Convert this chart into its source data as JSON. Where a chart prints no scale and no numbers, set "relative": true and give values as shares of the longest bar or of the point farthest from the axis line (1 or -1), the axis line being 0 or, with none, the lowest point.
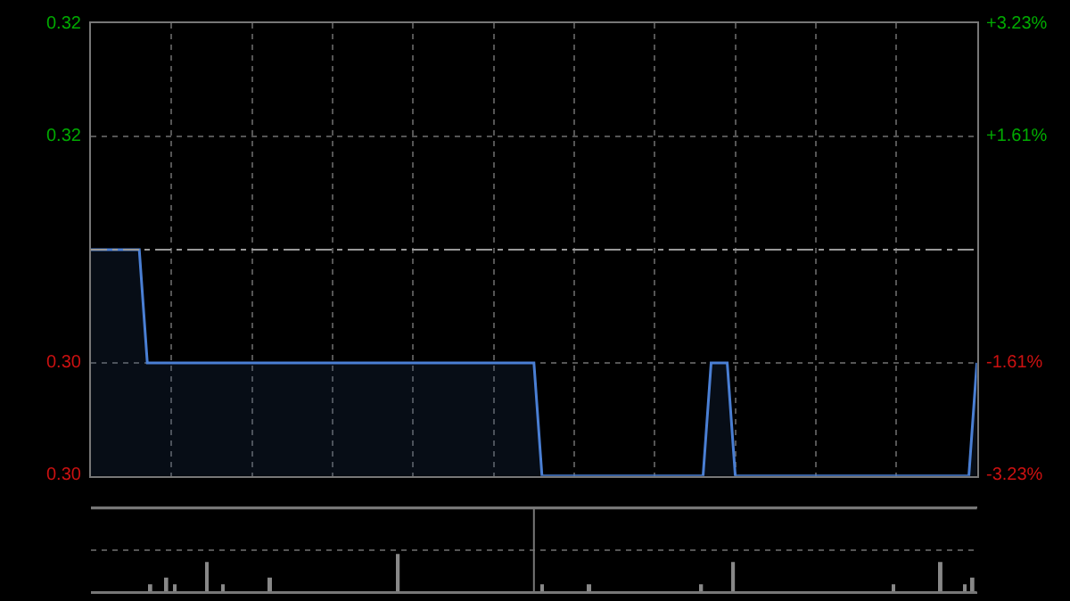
{
  "chart_data": [
    {
      "type": "area",
      "categories": [
        null,
        null,
        null,
        null,
        null,
        null,
        null,
        null,
        null,
        null,
        null,
        null,
        null,
        null,
        null,
        null,
        null,
        null,
        null,
        null,
        null,
        null,
        null,
        null,
        null,
        null,
        null,
        null,
        null,
        null,
        null,
        null,
        null,
        null,
        null,
        null,
        null,
        null,
        null,
        null,
        null,
        null,
        null,
        null,
        null,
        null,
        null,
        null,
        null,
        null,
        null,
        null,
        null,
        null,
        null,
        null,
        null,
        null,
        null,
        null,
        null,
        null,
        null,
        null,
        null,
        null,
        null,
        null,
        null,
        null,
        null,
        null,
        null,
        null,
        null,
        null,
        null,
        null,
        null,
        null,
        null,
        null,
        null,
        null,
        null,
        null,
        null,
        null,
        null,
        null,
        null,
        null,
        null,
        null,
        null,
        null,
        null,
        null,
        null,
        null,
        null,
        null,
        null,
        null,
        null,
        null,
        null,
        null,
        null,
        null,
        null
      ],
      "series": [
        {
          "color": "#4a7fd4",
          "values": [
            0.31,
            0.31,
            0.31,
            0.31,
            0.31,
            0.31,
            0.31,
            0.305,
            0.305,
            0.305,
            0.305,
            0.305,
            0.305,
            0.305,
            0.305,
            0.305,
            0.305,
            0.305,
            0.305,
            0.305,
            0.305,
            0.305,
            0.305,
            0.305,
            0.305,
            0.305,
            0.305,
            0.305,
            0.305,
            0.305,
            0.305,
            0.305,
            0.305,
            0.305,
            0.305,
            0.305,
            0.305,
            0.305,
            0.305,
            0.305,
            0.305,
            0.305,
            0.305,
            0.305,
            0.305,
            0.305,
            0.305,
            0.305,
            0.305,
            0.305,
            0.305,
            0.305,
            0.305,
            0.305,
            0.305,
            0.305,
            0.3,
            0.3,
            0.3,
            0.3,
            0.3,
            0.3,
            0.3,
            0.3,
            0.3,
            0.3,
            0.3,
            0.3,
            0.3,
            0.3,
            0.3,
            0.3,
            0.3,
            0.3,
            0.3,
            0.3,
            0.3,
            0.305,
            0.305,
            0.305,
            0.3,
            0.3,
            0.3,
            0.3,
            0.3,
            0.3,
            0.3,
            0.3,
            0.3,
            0.3,
            0.3,
            0.3,
            0.3,
            0.3,
            0.3,
            0.3,
            0.3,
            0.3,
            0.3,
            0.3,
            0.3,
            0.3,
            0.3,
            0.3,
            0.3,
            0.3,
            0.3,
            0.3,
            0.3,
            0.3,
            0.305
          ]
        }
      ],
      "ylim": [
        0.3,
        0.32
      ],
      "yticks": [
        {
          "value": 0.3,
          "label": "0.30"
        },
        {
          "value": 0.305,
          "label": "0.30"
        },
        {
          "value": 0.315,
          "label": "0.32"
        },
        {
          "value": 0.32,
          "label": "0.32"
        }
      ],
      "y2lim": [
        -3.23,
        3.23
      ],
      "y2ticks": [
        {
          "value": -3.23,
          "label": "-3.23%"
        },
        {
          "value": -1.61,
          "label": "-1.61%"
        },
        {
          "value": 1.61,
          "label": "+1.61%"
        },
        {
          "value": 3.23,
          "label": "+3.23%"
        }
      ],
      "ref_lines": [
        {
          "axis": "y",
          "value": 0.31,
          "line_style": "dashed"
        }
      ],
      "grid": true,
      "tick_labels": "y"
    },
    {
      "type": "bar",
      "relative": true,
      "categories": [
        null,
        null,
        null,
        null,
        null,
        null,
        null,
        null,
        null,
        null,
        null,
        null,
        null,
        null,
        null,
        null,
        null,
        null,
        null,
        null,
        null,
        null,
        null,
        null,
        null,
        null,
        null,
        null,
        null,
        null,
        null,
        null,
        null,
        null,
        null,
        null,
        null,
        null,
        null,
        null,
        null,
        null,
        null,
        null,
        null,
        null,
        null,
        null,
        null,
        null,
        null,
        null,
        null,
        null,
        null,
        null,
        null,
        null,
        null,
        null,
        null,
        null,
        null,
        null,
        null,
        null,
        null,
        null,
        null,
        null,
        null,
        null,
        null,
        null,
        null,
        null,
        null,
        null,
        null,
        null,
        null,
        null,
        null,
        null,
        null,
        null,
        null,
        null,
        null,
        null,
        null,
        null,
        null,
        null,
        null,
        null,
        null,
        null,
        null,
        null,
        null,
        null,
        null,
        null,
        null,
        null,
        null,
        null,
        null,
        null,
        null
      ],
      "color": "#888888",
      "values": [
        0,
        0,
        0,
        0,
        0,
        0,
        0,
        0.2,
        0,
        0.38,
        0.2,
        0,
        0,
        0,
        0.79,
        0,
        0.2,
        0,
        0,
        0,
        0,
        0,
        0.38,
        0,
        0,
        0,
        0,
        0,
        0,
        0,
        0,
        0,
        0,
        0,
        0,
        0,
        0,
        0,
        1,
        0,
        0,
        0,
        0,
        0,
        0,
        0,
        0,
        0,
        0,
        0,
        0,
        0,
        0,
        0,
        0,
        0,
        0.2,
        0,
        0,
        0,
        0,
        0,
        0.2,
        0,
        0,
        0,
        0,
        0,
        0,
        0,
        0,
        0,
        0,
        0,
        0,
        0,
        0.2,
        0,
        0,
        0,
        0.79,
        0,
        0,
        0,
        0,
        0,
        0,
        0,
        0,
        0,
        0,
        0,
        0,
        0,
        0,
        0,
        0,
        0,
        0,
        0,
        0.2,
        0,
        0,
        0,
        0,
        0,
        0.79,
        0,
        0,
        0.2,
        0.38
      ],
      "grid": true,
      "tick_labels": false
    }
  ]
}
